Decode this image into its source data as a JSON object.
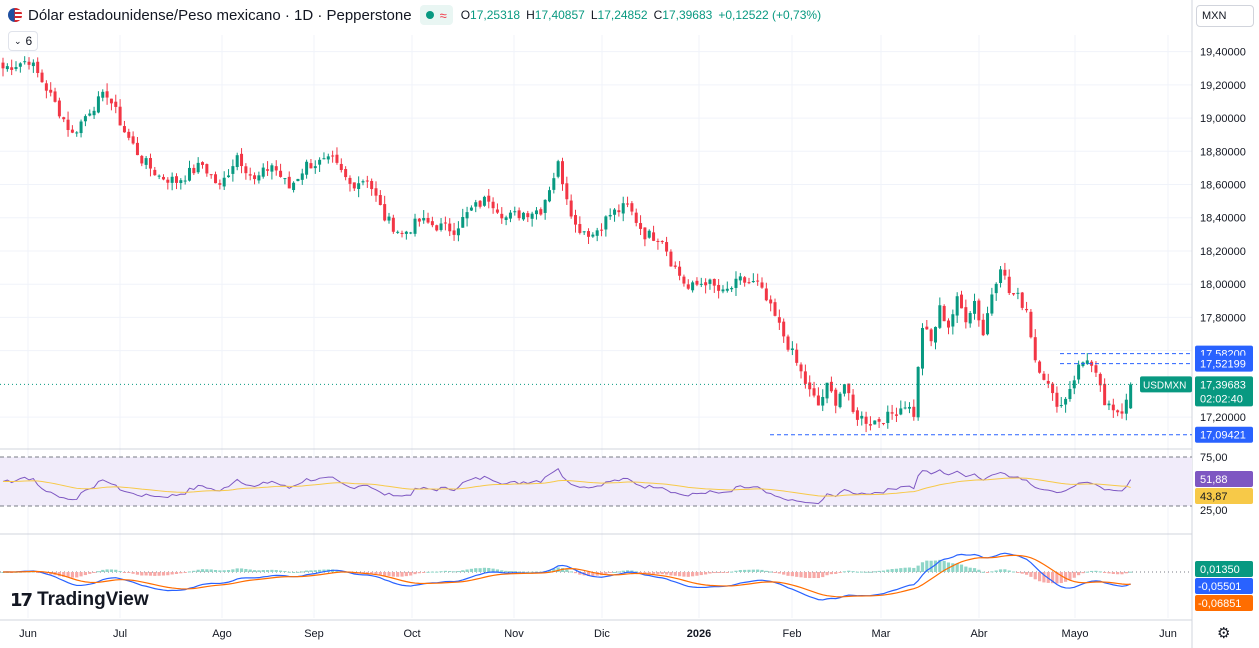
{
  "header": {
    "title": "Dólar estadounidense/Peso mexicano · 1D · Pepperstone",
    "flag_icon": "us-mx-flag-icon",
    "open_label": "O",
    "open": "17,25318",
    "high_label": "H",
    "high": "17,40857",
    "low_label": "L",
    "low": "17,24852",
    "close_label": "C",
    "close": "17,39683",
    "change": "+0,12522 (+0,73%)"
  },
  "currency_selector": "MXN",
  "indicator_toggle": "6",
  "logo_text": "TradingView",
  "colors": {
    "up": "#089981",
    "down": "#f23645",
    "rsi": "#7e57c2",
    "rsi_ma": "#f7c948",
    "macd": "#2962ff",
    "signal": "#ff6d00",
    "accent": "#2962ff"
  },
  "chart_data": [
    {
      "type": "candlestick",
      "symbol": "USDMXN",
      "ylim": [
        17.05,
        19.5
      ],
      "y_ticks": [
        "19,40000",
        "19,20000",
        "19,00000",
        "18,80000",
        "18,60000",
        "18,40000",
        "18,20000",
        "18,00000",
        "17,80000",
        "17,60000",
        "17,20000"
      ],
      "x_ticks": [
        "Jun",
        "Jul",
        "Ago",
        "Sep",
        "Oct",
        "Nov",
        "Dic",
        "2026",
        "Feb",
        "Mar",
        "Abr",
        "Mayo",
        "Jun"
      ],
      "anchors": [
        [
          0,
          19.3
        ],
        [
          6,
          19.35
        ],
        [
          10,
          19.18
        ],
        [
          16,
          18.9
        ],
        [
          20,
          19.05
        ],
        [
          24,
          19.15
        ],
        [
          28,
          18.92
        ],
        [
          32,
          18.75
        ],
        [
          36,
          18.65
        ],
        [
          40,
          18.62
        ],
        [
          46,
          18.72
        ],
        [
          50,
          18.58
        ],
        [
          54,
          18.78
        ],
        [
          58,
          18.62
        ],
        [
          62,
          18.72
        ],
        [
          66,
          18.58
        ],
        [
          70,
          18.72
        ],
        [
          76,
          18.74
        ],
        [
          80,
          18.6
        ],
        [
          84,
          18.64
        ],
        [
          88,
          18.4
        ],
        [
          92,
          18.3
        ],
        [
          96,
          18.38
        ],
        [
          100,
          18.35
        ],
        [
          104,
          18.33
        ],
        [
          108,
          18.45
        ],
        [
          112,
          18.52
        ],
        [
          116,
          18.4
        ],
        [
          120,
          18.43
        ],
        [
          124,
          18.45
        ],
        [
          128,
          18.72
        ],
        [
          132,
          18.35
        ],
        [
          136,
          18.3
        ],
        [
          140,
          18.42
        ],
        [
          144,
          18.47
        ],
        [
          148,
          18.3
        ],
        [
          152,
          18.28
        ],
        [
          154,
          18.14
        ],
        [
          158,
          17.97
        ],
        [
          162,
          18.02
        ],
        [
          166,
          17.94
        ],
        [
          170,
          18.02
        ],
        [
          174,
          18.0
        ],
        [
          178,
          17.8
        ],
        [
          182,
          17.58
        ],
        [
          186,
          17.35
        ],
        [
          188,
          17.27
        ],
        [
          190,
          17.38
        ],
        [
          192,
          17.3
        ],
        [
          194,
          17.4
        ],
        [
          196,
          17.22
        ],
        [
          200,
          17.17
        ],
        [
          204,
          17.2
        ],
        [
          208,
          17.28
        ],
        [
          210,
          17.22
        ],
        [
          212,
          17.75
        ],
        [
          214,
          17.65
        ],
        [
          216,
          17.85
        ],
        [
          218,
          17.75
        ],
        [
          220,
          17.9
        ],
        [
          222,
          17.8
        ],
        [
          224,
          17.9
        ],
        [
          226,
          17.7
        ],
        [
          228,
          17.95
        ],
        [
          230,
          18.12
        ],
        [
          232,
          17.95
        ],
        [
          234,
          17.92
        ],
        [
          236,
          17.85
        ],
        [
          238,
          17.55
        ],
        [
          240,
          17.45
        ],
        [
          242,
          17.32
        ],
        [
          244,
          17.27
        ],
        [
          246,
          17.38
        ],
        [
          248,
          17.5
        ],
        [
          250,
          17.56
        ],
        [
          252,
          17.44
        ],
        [
          254,
          17.28
        ],
        [
          256,
          17.22
        ],
        [
          258,
          17.25
        ],
        [
          260,
          17.4
        ]
      ],
      "total_bars": 261,
      "last_price": "17,39683",
      "countdown": "02:02:40",
      "price_labels": [
        "17,58200",
        "17,52199",
        "17,09421"
      ],
      "price_lines": [
        17.582,
        17.522,
        17.094
      ],
      "symbol_tag": "USDMXN"
    },
    {
      "type": "line",
      "name": "RSI",
      "ylim": [
        0,
        100
      ],
      "levels": [
        "75,00",
        "25,00"
      ],
      "rsi_value": "51,88",
      "ma_value": "43,87"
    },
    {
      "type": "bar",
      "name": "MACD",
      "histogram_value": "0,01350",
      "macd_value": "-0,05501",
      "signal_value": "-0,06851"
    }
  ]
}
